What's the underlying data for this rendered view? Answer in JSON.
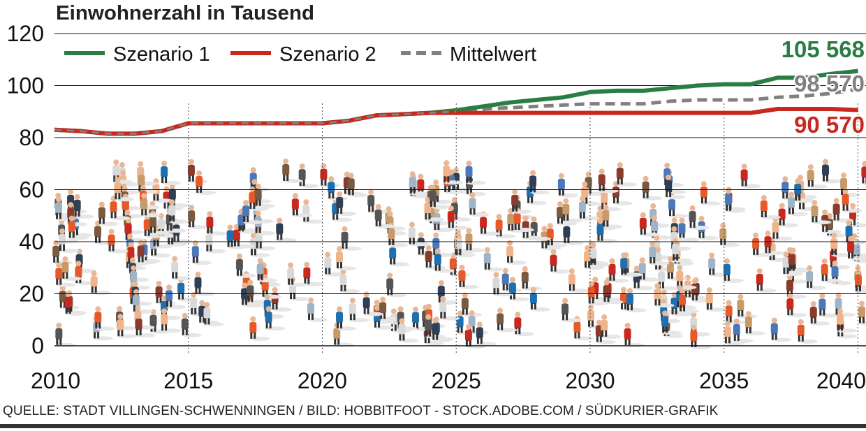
{
  "chart_data": {
    "type": "line",
    "title": "Einwohnerzahl in Tausend",
    "x": [
      2010,
      2011,
      2012,
      2013,
      2014,
      2015,
      2016,
      2017,
      2018,
      2019,
      2020,
      2021,
      2022,
      2023,
      2024,
      2025,
      2026,
      2027,
      2028,
      2029,
      2030,
      2031,
      2032,
      2033,
      2034,
      2035,
      2036,
      2037,
      2038,
      2039,
      2040
    ],
    "series": [
      {
        "name": "Szenario 1",
        "color": "#2a7d43",
        "dash": false,
        "values": [
          83,
          82.5,
          81.5,
          81.5,
          82.5,
          85.5,
          85.5,
          85.5,
          85.5,
          85.5,
          85.5,
          86.5,
          88.5,
          89,
          89.5,
          90.5,
          92,
          93.5,
          94.5,
          95.5,
          97.5,
          98,
          98,
          99,
          100,
          100.5,
          100.5,
          103,
          103,
          104.5,
          105.6
        ]
      },
      {
        "name": "Szenario 2",
        "color": "#c8281e",
        "dash": false,
        "values": [
          83,
          82.5,
          81.5,
          81.5,
          82.5,
          85.5,
          85.5,
          85.5,
          85.5,
          85.5,
          85.5,
          86.5,
          88.5,
          89,
          89.5,
          89.5,
          89.5,
          89.5,
          89.5,
          89.5,
          89.5,
          89.5,
          89.5,
          89.5,
          89.5,
          89.5,
          89.5,
          91,
          91,
          91,
          90.6
        ]
      },
      {
        "name": "Mittelwert",
        "color": "#808080",
        "dash": true,
        "values": [
          83,
          82.5,
          81.5,
          81.5,
          82.5,
          85.5,
          85.5,
          85.5,
          85.5,
          85.5,
          85.5,
          86.5,
          88.5,
          89,
          89.5,
          90,
          91,
          91.5,
          92,
          92.5,
          93,
          93,
          93,
          94,
          94.5,
          94.5,
          94.5,
          95.5,
          96,
          97,
          98.6
        ]
      }
    ],
    "end_labels": [
      {
        "series": "Szenario 1",
        "text": "105 568"
      },
      {
        "series": "Mittelwert",
        "text": "98 570"
      },
      {
        "series": "Szenario 2",
        "text": "90 570"
      }
    ],
    "y_ticks": [
      0,
      20,
      40,
      60,
      80,
      100,
      120
    ],
    "x_ticks": [
      2010,
      2015,
      2020,
      2025,
      2030,
      2035,
      2040
    ],
    "ylim": [
      0,
      120
    ],
    "xlim": [
      2010,
      2040.3
    ],
    "grid": true,
    "legend_position": "top-left"
  },
  "source": "QUELLE: STADT VILLINGEN-SCHWENNINGEN / BILD: HOBBITFOOT - STOCK.ADOBE.COM / SÜDKURIER-GRAFIK"
}
